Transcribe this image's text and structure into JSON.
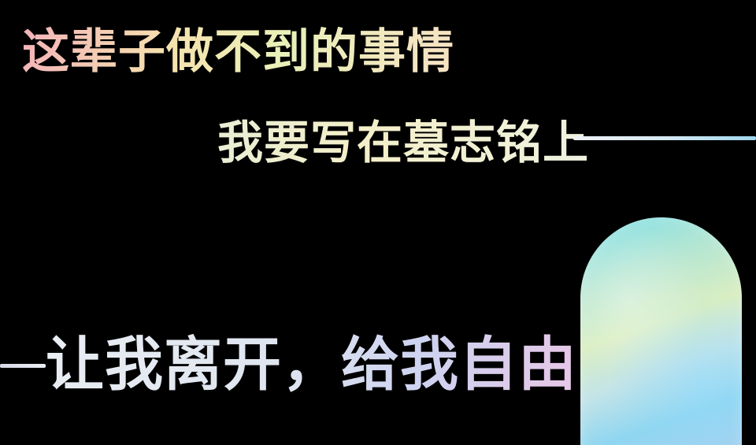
{
  "lines": {
    "line1": "这辈子做不到的事情",
    "line2": "我要写在墓志铭上",
    "line3": "让我离开，给我自由"
  },
  "colors": {
    "background": "#000000",
    "holographic_pink": "#f3b3b9",
    "holographic_yellow": "#f6e3ae",
    "holographic_cyan": "#8fd6f0",
    "holographic_violet": "#cdd3f0"
  },
  "shapes": {
    "arch": "holographic-arch",
    "rules": [
      "holographic-line-right",
      "holographic-line-left"
    ]
  }
}
